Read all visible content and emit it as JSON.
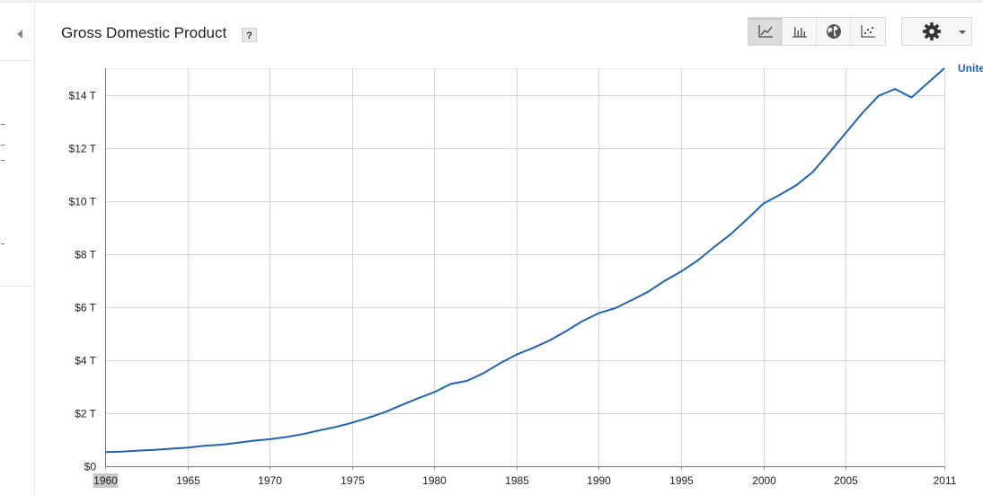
{
  "header": {
    "title": "Gross Domestic Product",
    "help_label": "?"
  },
  "toolbar": {
    "views": [
      {
        "icon": "line-chart-icon",
        "active": true
      },
      {
        "icon": "bar-chart-icon",
        "active": false
      },
      {
        "icon": "globe-map-icon",
        "active": false
      },
      {
        "icon": "scatter-chart-icon",
        "active": false
      }
    ],
    "settings_icon": "gear-icon",
    "dropdown_icon": "chevron-down-icon"
  },
  "colors": {
    "series_line": "#1f63b6",
    "grid": "#d6d6d6",
    "active_button": "#dcdcdc",
    "highlight_tick": "#c8c8c8"
  },
  "chart_data": {
    "type": "line",
    "title": "Gross Domestic Product",
    "xlabel": "",
    "ylabel": "",
    "xlim": [
      1960,
      2011
    ],
    "ylim": [
      0,
      15
    ],
    "grid": true,
    "x_ticks": [
      1960,
      1965,
      1970,
      1975,
      1980,
      1985,
      1990,
      1995,
      2000,
      2005,
      2011
    ],
    "x_tick_labels": [
      "1960",
      "1965",
      "1970",
      "1975",
      "1980",
      "1985",
      "1990",
      "1995",
      "2000",
      "2005",
      "2011"
    ],
    "highlighted_x_tick": "1960",
    "y_ticks": [
      0,
      2,
      4,
      6,
      8,
      10,
      12,
      14
    ],
    "y_tick_labels": [
      "$0",
      "$2 T",
      "$4 T",
      "$6 T",
      "$8 T",
      "$10 T",
      "$12 T",
      "$14 T"
    ],
    "series": [
      {
        "name": "Unite",
        "x": [
          1960,
          1961,
          1962,
          1963,
          1964,
          1965,
          1966,
          1967,
          1968,
          1969,
          1970,
          1971,
          1972,
          1973,
          1974,
          1975,
          1976,
          1977,
          1978,
          1979,
          1980,
          1981,
          1982,
          1983,
          1984,
          1985,
          1986,
          1987,
          1988,
          1989,
          1990,
          1991,
          1992,
          1993,
          1994,
          1995,
          1996,
          1997,
          1998,
          1999,
          2000,
          2001,
          2002,
          2003,
          2004,
          2005,
          2006,
          2007,
          2008,
          2009,
          2010,
          2011
        ],
        "values": [
          0.53,
          0.55,
          0.59,
          0.62,
          0.66,
          0.7,
          0.77,
          0.81,
          0.88,
          0.96,
          1.02,
          1.1,
          1.21,
          1.35,
          1.48,
          1.64,
          1.83,
          2.04,
          2.3,
          2.56,
          2.79,
          3.1,
          3.22,
          3.51,
          3.88,
          4.21,
          4.46,
          4.74,
          5.09,
          5.47,
          5.77,
          5.96,
          6.26,
          6.58,
          6.99,
          7.34,
          7.75,
          8.26,
          8.74,
          9.3,
          9.9,
          10.23,
          10.59,
          11.09,
          11.81,
          12.56,
          13.3,
          13.96,
          14.22,
          13.9,
          14.45,
          15.0
        ]
      }
    ]
  }
}
